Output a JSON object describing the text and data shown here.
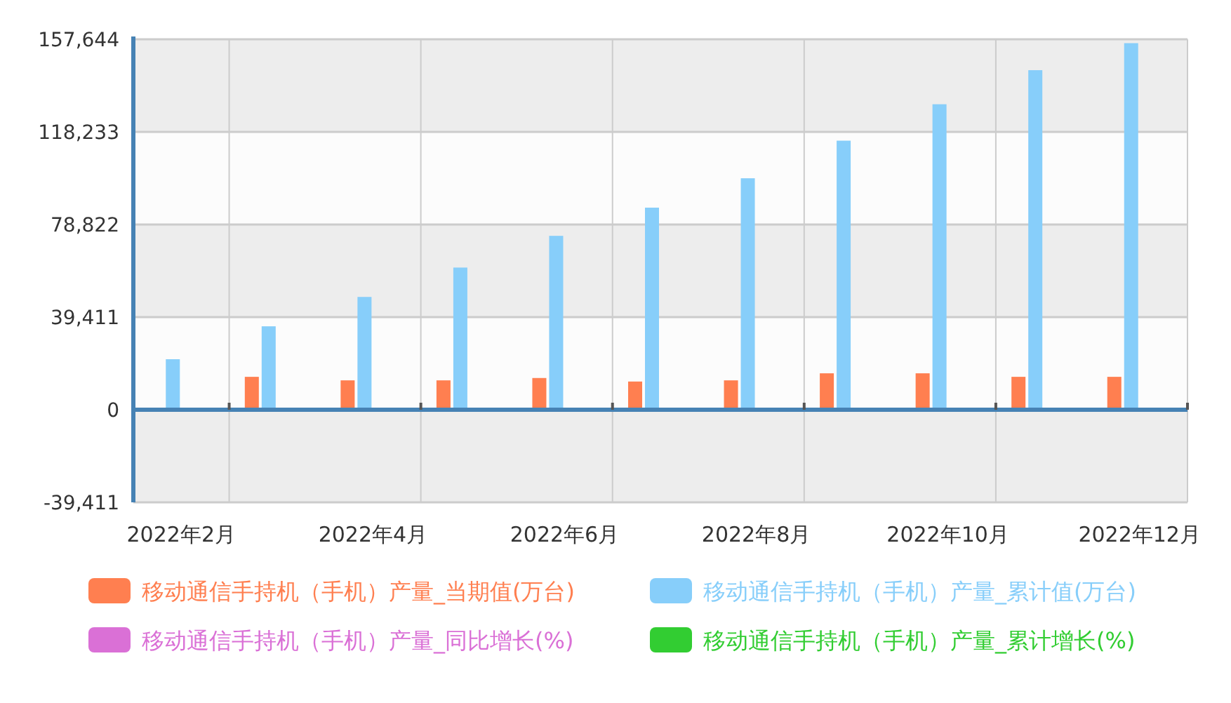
{
  "chart_data": {
    "type": "bar",
    "categories": [
      "2022年2月",
      null,
      "2022年4月",
      null,
      "2022年6月",
      null,
      "2022年8月",
      null,
      "2022年10月",
      null,
      "2022年12月"
    ],
    "series": [
      {
        "name": "移动通信手持机（手机）产量_当期值(万台)",
        "color": "#ff7f50",
        "values": [
          null,
          14000,
          12500,
          12500,
          13500,
          12000,
          12500,
          15500,
          15500,
          14000,
          14000
        ]
      },
      {
        "name": "移动通信手持机（手机）产量_累计值(万台)",
        "color": "#87cefa",
        "values": [
          21500,
          35500,
          48000,
          60500,
          74000,
          86000,
          98500,
          114500,
          130000,
          144500,
          156000
        ]
      },
      {
        "name": "移动通信手持机（手机）产量_同比增长(%)",
        "color": "#da70d6",
        "values": [
          null,
          null,
          null,
          null,
          null,
          null,
          null,
          null,
          null,
          null,
          null
        ]
      },
      {
        "name": "移动通信手持机（手机）产量_累计增长(%)",
        "color": "#32cd32",
        "values": [
          null,
          null,
          null,
          null,
          null,
          null,
          null,
          null,
          null,
          null,
          null
        ]
      }
    ],
    "ylim": [
      -39411,
      157644
    ],
    "yticks": [
      {
        "value": -39411,
        "label": "-39,411"
      },
      0,
      {
        "value": 39411,
        "label": "39,411"
      },
      {
        "value": 78822,
        "label": "78,822"
      },
      {
        "value": 118233,
        "label": "118,233"
      },
      {
        "value": 157644,
        "label": "157,644"
      }
    ],
    "ref_lines": [
      {
        "axis": "y",
        "value": 0,
        "color": "#4682b4"
      }
    ],
    "grid": true,
    "legend": "bottom"
  }
}
